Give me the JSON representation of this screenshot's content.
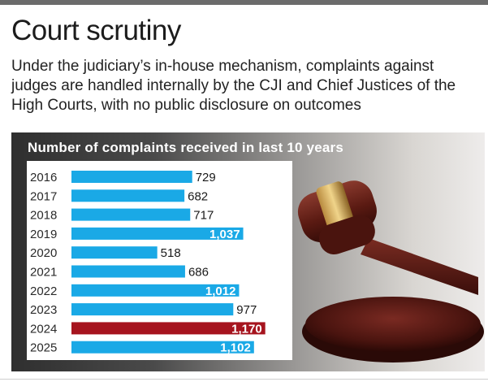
{
  "header": {
    "title": "Court scrutiny",
    "subtitle": "Under the judiciary’s in-house mechanism, complaints against judges are handled internally by the CJI and Chief Justices of the High Courts, with no public disclosure on outcomes"
  },
  "chart_data": {
    "type": "bar",
    "orientation": "horizontal",
    "title": "Number of complaints received in last 10 years",
    "categories": [
      "2016",
      "2017",
      "2018",
      "2019",
      "2020",
      "2021",
      "2022",
      "2023",
      "2024",
      "2025"
    ],
    "values": [
      729,
      682,
      717,
      1037,
      518,
      686,
      1012,
      977,
      1170,
      1102
    ],
    "labels": [
      "729",
      "682",
      "717",
      "1,037",
      "518",
      "686",
      "1,012",
      "977",
      "1,170",
      "1,102"
    ],
    "highlight_category": "2024",
    "grid": false,
    "xlim": [
      0,
      1200
    ]
  },
  "colors": {
    "bar": "#1aa9e6",
    "highlight": "#a6141e",
    "background": "#ffffff"
  },
  "illustration": "gavel-on-sound-block"
}
